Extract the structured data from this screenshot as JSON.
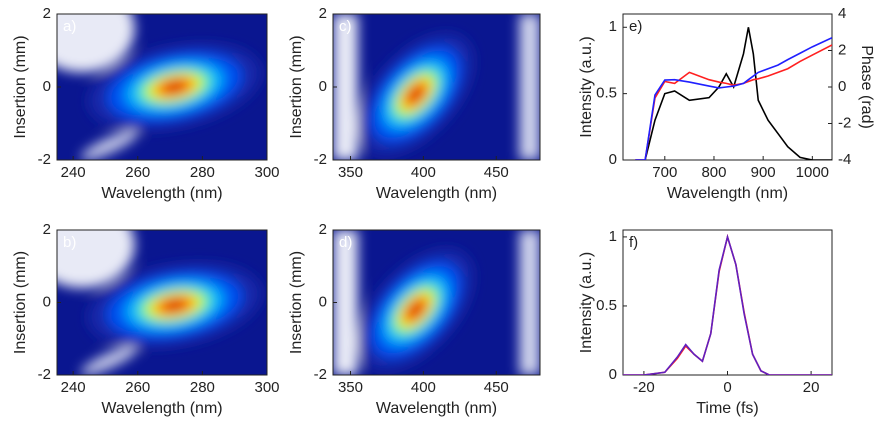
{
  "chart_data": [
    {
      "type": "contour",
      "label": "a)",
      "xlabel": "Wavelength (nm)",
      "ylabel": "Insertion (mm)",
      "xlim": [
        235,
        300
      ],
      "xticks": [
        240,
        260,
        280,
        300
      ],
      "ylim": [
        -2,
        2
      ],
      "yticks": [
        -2,
        0,
        2
      ]
    },
    {
      "type": "contour",
      "label": "b)",
      "xlabel": "Wavelength (nm)",
      "ylabel": "Insertion (mm)",
      "xlim": [
        235,
        300
      ],
      "xticks": [
        240,
        260,
        280,
        300
      ],
      "ylim": [
        -2,
        2
      ],
      "yticks": [
        -2,
        0,
        2
      ]
    },
    {
      "type": "contour",
      "label": "c)",
      "xlabel": "Wavelength (nm)",
      "ylabel": "Insertion (mm)",
      "xlim": [
        338,
        480
      ],
      "xticks": [
        350,
        400,
        450
      ],
      "ylim": [
        -2,
        2
      ],
      "yticks": [
        -2,
        0,
        2
      ]
    },
    {
      "type": "contour",
      "label": "d)",
      "xlabel": "Wavelength (nm)",
      "ylabel": "Insertion (mm)",
      "xlim": [
        338,
        480
      ],
      "xticks": [
        350,
        400,
        450
      ],
      "ylim": [
        -2,
        2
      ],
      "yticks": [
        -2,
        0,
        2
      ]
    },
    {
      "type": "line",
      "label": "e)",
      "xlabel": "Wavelength (nm)",
      "ylabel": "Intensity (a.u.)",
      "y2label": "Phase (rad)",
      "xlim": [
        615,
        1040
      ],
      "xticks": [
        700,
        800,
        900,
        1000
      ],
      "ylim": [
        0,
        1.1
      ],
      "yticks": [
        0,
        0.5,
        1
      ],
      "y2lim": [
        -4,
        4
      ],
      "y2ticks": [
        -4,
        -2,
        0,
        2,
        4
      ],
      "x": [
        640,
        660,
        680,
        700,
        720,
        750,
        790,
        810,
        825,
        840,
        860,
        870,
        880,
        890,
        910,
        930,
        950,
        975,
        1000,
        1040
      ],
      "series": [
        {
          "color": "#000000",
          "values": [
            0,
            0,
            0.3,
            0.5,
            0.52,
            0.45,
            0.47,
            0.55,
            0.65,
            0.55,
            0.8,
            1.0,
            0.8,
            0.45,
            0.3,
            0.2,
            0.1,
            0.02,
            0,
            0
          ]
        },
        {
          "color": "#ff2020",
          "axis": "y2",
          "values": [
            -4,
            -4,
            -0.6,
            0.3,
            0.2,
            0.8,
            0.4,
            0.27,
            0.2,
            0.1,
            0.2,
            0.3,
            0.4,
            0.45,
            0.6,
            0.8,
            1.0,
            1.4,
            1.75,
            2.3
          ]
        },
        {
          "color": "#2020ff",
          "axis": "y2",
          "values": [
            -4,
            -4,
            -0.44,
            0.38,
            0.4,
            0.27,
            0.05,
            -0.05,
            0,
            0.05,
            0.2,
            0.4,
            0.6,
            0.8,
            1.0,
            1.2,
            1.5,
            1.85,
            2.2,
            2.7
          ]
        }
      ]
    },
    {
      "type": "line",
      "label": "f)",
      "xlabel": "Time (fs)",
      "ylabel": "Intensity (a.u.)",
      "xlim": [
        -25,
        25
      ],
      "xticks": [
        -20,
        0,
        20
      ],
      "ylim": [
        0,
        1.05
      ],
      "yticks": [
        0,
        0.5,
        1
      ],
      "x": [
        -25,
        -20,
        -15,
        -12,
        -10,
        -8,
        -6,
        -4,
        -2,
        0,
        2,
        4,
        6,
        8,
        10,
        15,
        20,
        25
      ],
      "series": [
        {
          "color": "#ff2020",
          "values": [
            0,
            0,
            0.02,
            0.12,
            0.21,
            0.15,
            0.1,
            0.3,
            0.75,
            1,
            0.8,
            0.45,
            0.15,
            0.03,
            0,
            0,
            0,
            0
          ]
        },
        {
          "color": "#6020c0",
          "values": [
            0,
            0,
            0.02,
            0.13,
            0.22,
            0.15,
            0.1,
            0.3,
            0.76,
            1,
            0.8,
            0.44,
            0.15,
            0.03,
            0,
            0,
            0,
            0
          ]
        }
      ]
    }
  ]
}
